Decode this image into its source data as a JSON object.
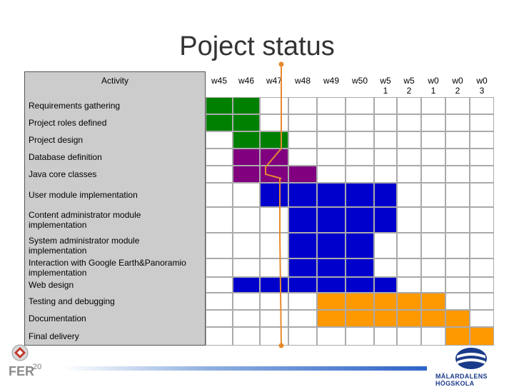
{
  "title": "Poject status",
  "page_number": "20",
  "logo_text": "MÄLARDALENS HÖGSKOLA",
  "fer_text": "FER",
  "gantt": {
    "activity_header": "Activity",
    "weeks": [
      "w45",
      "w46",
      "w47",
      "w48",
      "w49",
      "w50",
      "w5\n1",
      "w5\n2",
      "w0\n1",
      "w0\n2",
      "w0\n3"
    ],
    "colors": {
      "green": "#008000",
      "purple": "#800080",
      "blue": "#0000cc",
      "orange": "#ff9900",
      "empty": "#ffffff",
      "progress_line": "#e68a2e"
    },
    "rows": [
      {
        "label": "Requirements gathering",
        "cells": [
          "green",
          "green",
          "",
          "",
          "",
          "",
          "",
          "",
          "",
          "",
          ""
        ]
      },
      {
        "label": "Project roles defined",
        "cells": [
          "green",
          "green",
          "",
          "",
          "",
          "",
          "",
          "",
          "",
          "",
          ""
        ]
      },
      {
        "label": "Project design",
        "cells": [
          "",
          "green",
          "green",
          "",
          "",
          "",
          "",
          "",
          "",
          "",
          ""
        ]
      },
      {
        "label": "Database definition",
        "cells": [
          "",
          "purple",
          "purple",
          "",
          "",
          "",
          "",
          "",
          "",
          "",
          ""
        ]
      },
      {
        "label": "Java core classes",
        "cells": [
          "",
          "purple",
          "purple",
          "purple",
          "",
          "",
          "",
          "",
          "",
          "",
          ""
        ]
      },
      {
        "label": "User module implementation",
        "cells": [
          "",
          "",
          "blue",
          "blue",
          "blue",
          "blue",
          "blue",
          "",
          "",
          "",
          ""
        ]
      },
      {
        "label": "Content administrator module\nimplementation",
        "cells": [
          "",
          "",
          "",
          "blue",
          "blue",
          "blue",
          "blue",
          "",
          "",
          "",
          ""
        ]
      },
      {
        "label": "System administrator module\nimplementation",
        "cells": [
          "",
          "",
          "",
          "blue",
          "blue",
          "blue",
          "",
          "",
          "",
          "",
          ""
        ]
      },
      {
        "label": "Interaction with Google Earth&Panoramio\nimplementation",
        "cells": [
          "",
          "",
          "",
          "blue",
          "blue",
          "blue",
          "",
          "",
          "",
          "",
          ""
        ]
      },
      {
        "label": "Web design",
        "cells": [
          "",
          "blue",
          "blue",
          "blue",
          "blue",
          "blue",
          "blue",
          "",
          "",
          "",
          ""
        ]
      },
      {
        "label": "Testing and debugging",
        "cells": [
          "",
          "",
          "",
          "",
          "orange",
          "orange",
          "orange",
          "orange",
          "orange",
          "",
          ""
        ]
      },
      {
        "label": "Documentation",
        "cells": [
          "",
          "",
          "",
          "",
          "orange",
          "orange",
          "orange",
          "orange",
          "orange",
          "orange",
          ""
        ]
      },
      {
        "label": "Final delivery",
        "cells": [
          "",
          "",
          "",
          "",
          "",
          "",
          "",
          "",
          "",
          "orange",
          "orange"
        ]
      }
    ]
  }
}
